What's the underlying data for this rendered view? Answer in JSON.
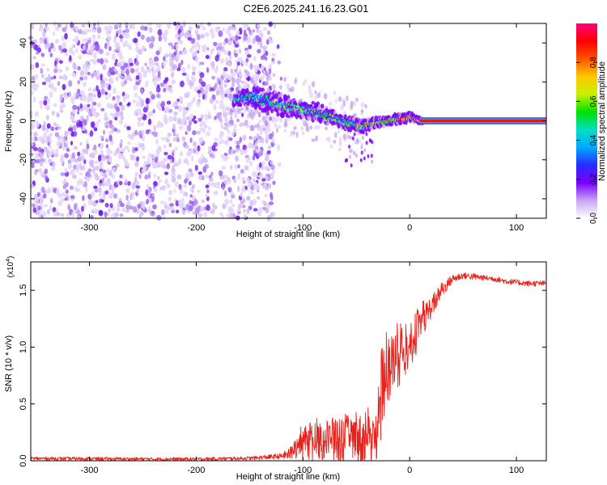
{
  "figure_title": "C2E6.2025.241.16.23.G01",
  "colors": {
    "snr_line": "#e8211b",
    "spectrogram_noise": "#7a2cf0",
    "frame": "#000000",
    "colorbar_stops": [
      "#ffffff",
      "#c7a6f5",
      "#7a00ff",
      "#2a2aff",
      "#00aaff",
      "#00e0c0",
      "#00e000",
      "#c8f000",
      "#ffc800",
      "#ff5500",
      "#ff0000",
      "#ff0080"
    ]
  },
  "chart_data": [
    {
      "type": "heatmap",
      "title": "C2E6.2025.241.16.23.G01",
      "xlabel": "Height of straight line (km)",
      "ylabel": "Frequency (Hz)",
      "xlim": [
        -355,
        128
      ],
      "ylim": [
        -50,
        50
      ],
      "xticks": [
        -300,
        -200,
        -100,
        0,
        100
      ],
      "yticks": [
        -40,
        -20,
        0,
        20,
        40
      ],
      "noise_region_km": [
        -355,
        -127
      ],
      "signal_track": {
        "x_km": [
          -165,
          -150,
          -140,
          -130,
          -120,
          -110,
          -100,
          -90,
          -80,
          -70,
          -60,
          -50,
          -45,
          -40,
          -30,
          -20,
          -10,
          0,
          10,
          128
        ],
        "freq_hz": [
          11,
          12,
          11,
          10,
          8,
          7,
          6,
          5,
          3,
          1,
          -1,
          -2,
          -3,
          -2,
          -1,
          0,
          1,
          2,
          0,
          0
        ],
        "spread_hz": [
          3,
          4,
          5,
          5,
          5,
          4,
          4,
          4,
          4,
          3,
          3,
          3,
          3,
          2,
          2,
          2,
          2,
          2,
          1,
          1
        ]
      },
      "colorbar": {
        "label": "Normalized spectral amplitude",
        "range": [
          0,
          1
        ],
        "ticks": [
          "0.0",
          "0.2",
          "0.4",
          "0.6",
          "0.8"
        ]
      }
    },
    {
      "type": "line",
      "xlabel": "Height of straight line (km)",
      "ylabel": "SNR (10 * v/v)",
      "y_multiplier": "(x10",
      "y_multiplier_exp": "4",
      "unit_note": ")",
      "xlim": [
        -355,
        128
      ],
      "ylim": [
        0,
        17500
      ],
      "xticks": [
        -300,
        -200,
        -100,
        0,
        100
      ],
      "yticks": [
        "0.0",
        "0.5",
        "1.0",
        "1.5"
      ],
      "ytick_values": [
        0,
        5000,
        10000,
        15000
      ],
      "series": [
        {
          "name": "SNR",
          "x_km": [
            -355,
            -300,
            -250,
            -200,
            -150,
            -120,
            -110,
            -105,
            -100,
            -90,
            -80,
            -70,
            -60,
            -50,
            -40,
            -33,
            -30,
            -28,
            -25,
            -20,
            -15,
            -10,
            -5,
            0,
            5,
            10,
            20,
            30,
            40,
            50,
            60,
            70,
            80,
            90,
            100,
            110,
            120,
            128
          ],
          "mean": [
            200,
            180,
            150,
            150,
            220,
            400,
            700,
            1000,
            1500,
            1600,
            1800,
            1800,
            1900,
            1900,
            1800,
            1700,
            3000,
            5000,
            6500,
            8000,
            8500,
            9000,
            9500,
            10000,
            11000,
            12000,
            13500,
            15000,
            16000,
            16300,
            16200,
            16100,
            16000,
            15800,
            15700,
            15600,
            15600,
            15600
          ],
          "amp": [
            150,
            150,
            150,
            150,
            150,
            250,
            700,
            1200,
            1500,
            1700,
            1900,
            2000,
            2100,
            2300,
            2300,
            2300,
            2500,
            4000,
            3500,
            3000,
            3000,
            2500,
            2500,
            2000,
            2000,
            1500,
            1000,
            700,
            400,
            300,
            300,
            250,
            250,
            250,
            250,
            250,
            250,
            250
          ]
        }
      ]
    }
  ]
}
